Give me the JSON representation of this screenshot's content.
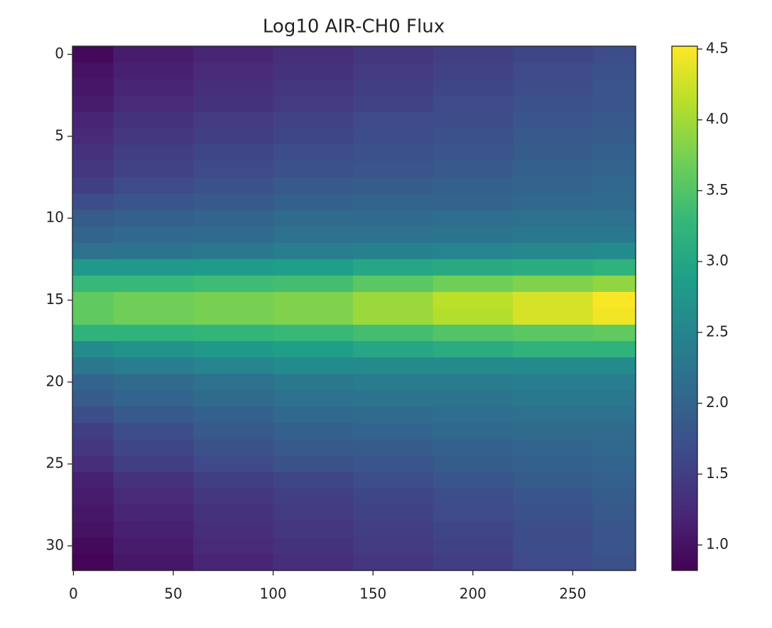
{
  "chart_data": {
    "type": "heatmap",
    "title": "Log10 AIR-CH0 Flux",
    "colormap": "viridis",
    "x": [
      0,
      40,
      80,
      120,
      160,
      200,
      240,
      280
    ],
    "y": [
      0,
      1,
      2,
      3,
      4,
      5,
      6,
      7,
      8,
      9,
      10,
      11,
      12,
      13,
      14,
      15,
      16,
      17,
      18,
      19,
      20,
      21,
      22,
      23,
      24,
      25,
      26,
      27,
      28,
      29,
      30,
      31
    ],
    "z": [
      [
        0.9,
        1.1,
        1.2,
        1.3,
        1.4,
        1.5,
        1.6,
        1.7
      ],
      [
        1.0,
        1.15,
        1.25,
        1.35,
        1.45,
        1.55,
        1.65,
        1.75
      ],
      [
        1.05,
        1.2,
        1.3,
        1.4,
        1.5,
        1.6,
        1.7,
        1.8
      ],
      [
        1.1,
        1.25,
        1.35,
        1.45,
        1.55,
        1.65,
        1.75,
        1.8
      ],
      [
        1.2,
        1.35,
        1.45,
        1.55,
        1.65,
        1.7,
        1.8,
        1.85
      ],
      [
        1.25,
        1.4,
        1.5,
        1.6,
        1.7,
        1.75,
        1.85,
        1.9
      ],
      [
        1.35,
        1.5,
        1.6,
        1.7,
        1.75,
        1.8,
        1.9,
        1.95
      ],
      [
        1.4,
        1.55,
        1.65,
        1.75,
        1.8,
        1.85,
        1.95,
        2.0
      ],
      [
        1.5,
        1.65,
        1.75,
        1.85,
        1.9,
        1.95,
        2.0,
        2.05
      ],
      [
        1.7,
        1.8,
        1.85,
        1.95,
        2.0,
        2.0,
        2.05,
        2.1
      ],
      [
        1.9,
        1.95,
        2.0,
        2.1,
        2.1,
        2.15,
        2.2,
        2.2
      ],
      [
        2.0,
        2.05,
        2.1,
        2.2,
        2.2,
        2.25,
        2.3,
        2.3
      ],
      [
        2.2,
        2.25,
        2.3,
        2.4,
        2.45,
        2.5,
        2.55,
        2.6
      ],
      [
        2.8,
        2.8,
        2.85,
        2.9,
        3.0,
        3.05,
        3.1,
        3.2
      ],
      [
        3.3,
        3.3,
        3.35,
        3.4,
        3.55,
        3.7,
        3.8,
        3.9
      ],
      [
        3.6,
        3.7,
        3.75,
        3.8,
        3.95,
        4.15,
        4.3,
        4.5
      ],
      [
        3.6,
        3.7,
        3.75,
        3.8,
        3.95,
        4.1,
        4.3,
        4.45
      ],
      [
        3.2,
        3.2,
        3.25,
        3.3,
        3.4,
        3.5,
        3.55,
        3.6
      ],
      [
        2.6,
        2.7,
        2.8,
        2.9,
        3.0,
        3.1,
        3.2,
        3.2
      ],
      [
        2.3,
        2.4,
        2.5,
        2.6,
        2.6,
        2.6,
        2.6,
        2.6
      ],
      [
        2.0,
        2.1,
        2.2,
        2.3,
        2.35,
        2.35,
        2.4,
        2.4
      ],
      [
        1.9,
        2.0,
        2.1,
        2.2,
        2.25,
        2.25,
        2.3,
        2.3
      ],
      [
        1.7,
        1.85,
        1.95,
        2.05,
        2.1,
        2.15,
        2.2,
        2.2
      ],
      [
        1.5,
        1.7,
        1.85,
        1.95,
        2.0,
        2.05,
        2.1,
        2.1
      ],
      [
        1.4,
        1.6,
        1.75,
        1.85,
        1.9,
        1.95,
        2.0,
        2.05
      ],
      [
        1.3,
        1.5,
        1.65,
        1.75,
        1.8,
        1.9,
        1.95,
        2.0
      ],
      [
        1.15,
        1.35,
        1.5,
        1.6,
        1.7,
        1.8,
        1.9,
        1.95
      ],
      [
        1.1,
        1.25,
        1.4,
        1.5,
        1.6,
        1.7,
        1.8,
        1.9
      ],
      [
        1.05,
        1.2,
        1.35,
        1.45,
        1.55,
        1.65,
        1.75,
        1.85
      ],
      [
        1.0,
        1.15,
        1.3,
        1.4,
        1.5,
        1.6,
        1.7,
        1.8
      ],
      [
        0.9,
        1.1,
        1.25,
        1.35,
        1.45,
        1.55,
        1.7,
        1.8
      ],
      [
        0.85,
        1.05,
        1.2,
        1.3,
        1.4,
        1.5,
        1.65,
        1.75
      ]
    ],
    "xlim": [
      -0.5,
      281.5
    ],
    "ylim": [
      31.5,
      -0.5
    ],
    "xticks": [
      0,
      50,
      100,
      150,
      200,
      250
    ],
    "yticks": [
      0,
      5,
      10,
      15,
      20,
      25,
      30
    ],
    "clim": [
      0.82,
      4.52
    ],
    "cticks": [
      1.0,
      1.5,
      2.0,
      2.5,
      3.0,
      3.5,
      4.0,
      4.5
    ]
  }
}
